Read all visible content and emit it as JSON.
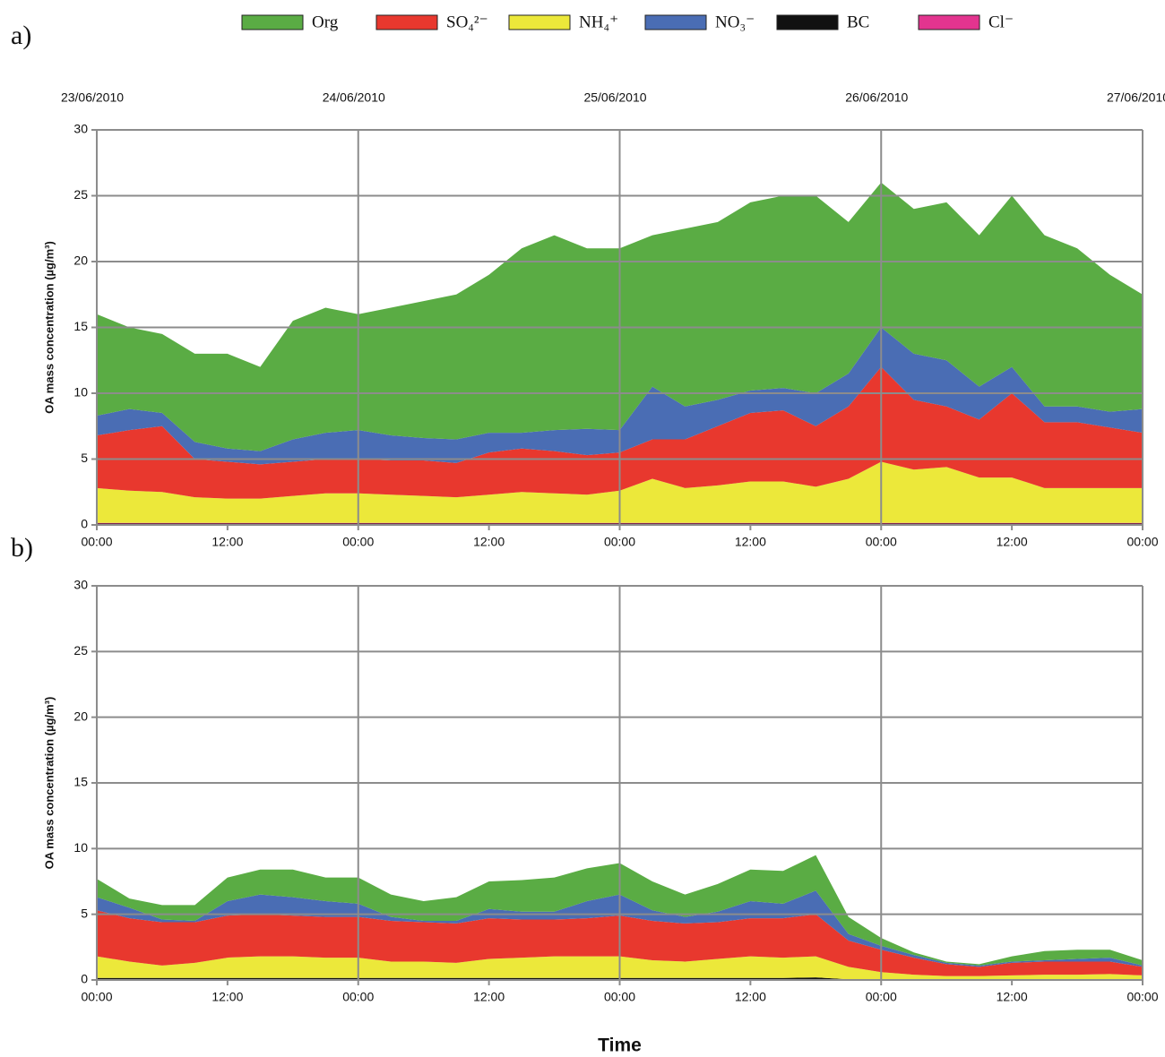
{
  "chart_data": [
    {
      "type": "stacked_area",
      "panel_label": "a)",
      "ylabel": "OA mass concentration (µg/m³)",
      "x": [
        0,
        3,
        6,
        9,
        12,
        15,
        18,
        21,
        24,
        27,
        30,
        33,
        36,
        39,
        42,
        45,
        48,
        51,
        54,
        57,
        60,
        63,
        66,
        69,
        72,
        75,
        78,
        81,
        84,
        87,
        90,
        93,
        96
      ],
      "xlim": [
        0,
        96
      ],
      "xticks": [
        {
          "value": 0,
          "label": "00:00"
        },
        {
          "value": 12,
          "label": "12:00"
        },
        {
          "value": 24,
          "label": "00:00"
        },
        {
          "value": 36,
          "label": "12:00"
        },
        {
          "value": 48,
          "label": "00:00"
        },
        {
          "value": 60,
          "label": "12:00"
        },
        {
          "value": 72,
          "label": "00:00"
        },
        {
          "value": 84,
          "label": "12:00"
        },
        {
          "value": 96,
          "label": "00:00"
        }
      ],
      "xticks_top": [
        {
          "value": 0,
          "label": "23/06/2010"
        },
        {
          "value": 24,
          "label": "24/06/2010"
        },
        {
          "value": 48,
          "label": "25/06/2010"
        },
        {
          "value": 72,
          "label": "26/06/2010"
        },
        {
          "value": 96,
          "label": "27/06/2010"
        }
      ],
      "ylim": [
        0,
        30
      ],
      "yticks": [
        0,
        5,
        10,
        15,
        20,
        25,
        30
      ],
      "grid": true,
      "stack_order": [
        4,
        5,
        2,
        1,
        3,
        0
      ],
      "series": [
        {
          "name": "Org",
          "color": "#5aac44",
          "values": [
            7.7,
            6.2,
            6,
            6.7,
            7.2,
            6.4,
            9,
            9.5,
            8.8,
            9.7,
            10.4,
            11,
            12,
            14,
            14.8,
            13.7,
            13.8,
            11.5,
            13.5,
            13.5,
            14.3,
            14.6,
            15,
            11.5,
            11,
            11,
            12,
            11.5,
            13,
            13,
            12,
            10.4,
            8.7
          ]
        },
        {
          "name": "SO₄²⁻",
          "color": "#e8382e",
          "values": [
            4,
            4.6,
            5,
            2.9,
            2.8,
            2.6,
            2.6,
            2.6,
            2.6,
            2.6,
            2.7,
            2.6,
            3.2,
            3.3,
            3.2,
            3,
            2.9,
            3,
            3.7,
            4.5,
            5.2,
            5.4,
            4.6,
            5.5,
            7.2,
            5.3,
            4.6,
            4.4,
            6.4,
            5,
            5,
            4.6,
            4.2
          ]
        },
        {
          "name": "NH₄⁺",
          "color": "#ece83a",
          "values": [
            2.65,
            2.45,
            2.35,
            1.95,
            1.85,
            1.85,
            2.05,
            2.25,
            2.25,
            2.15,
            2.05,
            1.95,
            2.15,
            2.35,
            2.25,
            2.15,
            2.45,
            3.35,
            2.65,
            2.85,
            3.15,
            3.15,
            2.75,
            3.35,
            4.65,
            4.05,
            4.25,
            3.45,
            3.45,
            2.65,
            2.65,
            2.65,
            2.65
          ]
        },
        {
          "name": "NO₃⁻",
          "color": "#4a6db4",
          "values": [
            1.5,
            1.6,
            1,
            1.3,
            1,
            1,
            1.7,
            2,
            2.2,
            1.9,
            1.7,
            1.8,
            1.5,
            1.2,
            1.6,
            2,
            1.7,
            4,
            2.5,
            2,
            1.7,
            1.7,
            2.5,
            2.5,
            3,
            3.5,
            3.5,
            2.5,
            2,
            1.2,
            1.2,
            1.2,
            1.8
          ]
        },
        {
          "name": "BC",
          "color": "#111111",
          "values": [
            0.1,
            0.1,
            0.1,
            0.1,
            0.1,
            0.1,
            0.1,
            0.1,
            0.1,
            0.1,
            0.1,
            0.1,
            0.1,
            0.1,
            0.1,
            0.1,
            0.1,
            0.1,
            0.1,
            0.1,
            0.1,
            0.1,
            0.1,
            0.1,
            0.1,
            0.1,
            0.1,
            0.1,
            0.1,
            0.1,
            0.1,
            0.1,
            0.1
          ]
        },
        {
          "name": "Cl⁻",
          "color": "#e3348f",
          "values": [
            0.05,
            0.05,
            0.05,
            0.05,
            0.05,
            0.05,
            0.05,
            0.05,
            0.05,
            0.05,
            0.05,
            0.05,
            0.05,
            0.05,
            0.05,
            0.05,
            0.05,
            0.05,
            0.05,
            0.05,
            0.05,
            0.05,
            0.05,
            0.05,
            0.05,
            0.05,
            0.05,
            0.05,
            0.05,
            0.05,
            0.05,
            0.05,
            0.05
          ]
        }
      ]
    },
    {
      "type": "stacked_area",
      "panel_label": "b)",
      "ylabel": "OA mass concentration (µg/m³)",
      "xlabel": "Time",
      "x": [
        0,
        3,
        6,
        9,
        12,
        15,
        18,
        21,
        24,
        27,
        30,
        33,
        36,
        39,
        42,
        45,
        48,
        51,
        54,
        57,
        60,
        63,
        66,
        69,
        72,
        75,
        78,
        81,
        84,
        87,
        90,
        93,
        96
      ],
      "xlim": [
        0,
        96
      ],
      "xticks": [
        {
          "value": 0,
          "label": "00:00"
        },
        {
          "value": 12,
          "label": "12:00"
        },
        {
          "value": 24,
          "label": "00:00"
        },
        {
          "value": 36,
          "label": "12:00"
        },
        {
          "value": 48,
          "label": "00:00"
        },
        {
          "value": 60,
          "label": "12:00"
        },
        {
          "value": 72,
          "label": "00:00"
        },
        {
          "value": 84,
          "label": "12:00"
        },
        {
          "value": 96,
          "label": "00:00"
        }
      ],
      "ylim": [
        0,
        30
      ],
      "yticks": [
        0,
        5,
        10,
        15,
        20,
        25,
        30
      ],
      "grid": true,
      "stack_order": [
        4,
        5,
        2,
        1,
        3,
        0
      ],
      "series": [
        {
          "color": "#5aac44",
          "values": [
            1.4,
            0.7,
            1.1,
            1.2,
            1.8,
            1.9,
            2.1,
            1.8,
            2.0,
            1.7,
            1.5,
            1.8,
            2.1,
            2.4,
            2.6,
            2.5,
            2.4,
            2.2,
            1.7,
            2.1,
            2.4,
            2.5,
            2.7,
            1.3,
            0.6,
            0.2,
            0.1,
            0.1,
            0.4,
            0.7,
            0.7,
            0.6,
            0.4
          ]
        },
        {
          "color": "#e8382e",
          "values": [
            3.5,
            3.3,
            3.3,
            3.1,
            3.2,
            3.2,
            3.1,
            3.1,
            3.1,
            3.1,
            3.0,
            3.0,
            3.1,
            2.9,
            2.8,
            2.9,
            3.1,
            3.0,
            2.9,
            2.8,
            2.9,
            3.0,
            3.2,
            2.0,
            1.7,
            1.3,
            0.9,
            0.7,
            0.95,
            1.0,
            1.0,
            0.95,
            0.65
          ]
        },
        {
          "color": "#ece83a",
          "values": [
            1.65,
            1.25,
            0.95,
            1.15,
            1.55,
            1.65,
            1.65,
            1.55,
            1.55,
            1.25,
            1.25,
            1.15,
            1.45,
            1.55,
            1.65,
            1.65,
            1.65,
            1.35,
            1.25,
            1.45,
            1.65,
            1.55,
            1.6,
            0.95,
            0.55,
            0.35,
            0.25,
            0.25,
            0.3,
            0.35,
            0.35,
            0.4,
            0.3
          ]
        },
        {
          "color": "#4a6db4",
          "values": [
            1.0,
            0.8,
            0.2,
            0.1,
            1.1,
            1.5,
            1.4,
            1.2,
            1.0,
            0.3,
            0.1,
            0.2,
            0.7,
            0.6,
            0.6,
            1.3,
            1.6,
            0.8,
            0.5,
            0.8,
            1.3,
            1.1,
            1.8,
            0.5,
            0.3,
            0.2,
            0.1,
            0.1,
            0.1,
            0.1,
            0.2,
            0.3,
            0.1
          ]
        },
        {
          "color": "#111111",
          "values": [
            0.15,
            0.15,
            0.15,
            0.15,
            0.15,
            0.15,
            0.15,
            0.15,
            0.15,
            0.15,
            0.15,
            0.15,
            0.15,
            0.15,
            0.15,
            0.15,
            0.15,
            0.15,
            0.15,
            0.15,
            0.15,
            0.15,
            0.2,
            0.05,
            0.05,
            0.05,
            0.05,
            0.05,
            0.05,
            0.05,
            0.05,
            0.05,
            0.05
          ]
        },
        {
          "color": "#e3348f",
          "values": [
            0,
            0,
            0,
            0,
            0,
            0,
            0,
            0,
            0,
            0,
            0,
            0,
            0,
            0,
            0,
            0,
            0,
            0,
            0,
            0,
            0,
            0,
            0,
            0,
            0,
            0,
            0,
            0,
            0,
            0,
            0,
            0,
            0
          ]
        }
      ]
    }
  ]
}
